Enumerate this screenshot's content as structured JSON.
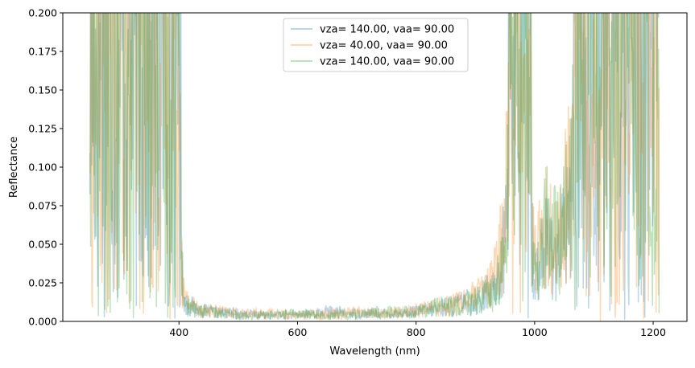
{
  "chart_data": {
    "type": "line",
    "title": "",
    "xlabel": "Wavelength (nm)",
    "ylabel": "Reflectance",
    "xlim": [
      204,
      1257
    ],
    "ylim": [
      0,
      0.2
    ],
    "xticks": [
      400,
      600,
      800,
      1000,
      1200
    ],
    "xtick_labels": [
      "400",
      "600",
      "800",
      "1000",
      "1200"
    ],
    "yticks": [
      0.0,
      0.025,
      0.05,
      0.075,
      0.1,
      0.125,
      0.15,
      0.175,
      0.2
    ],
    "ytick_labels": [
      "0.000",
      "0.025",
      "0.050",
      "0.075",
      "0.100",
      "0.125",
      "0.150",
      "0.175",
      "0.200"
    ],
    "grid": false,
    "legend_position": "upper center",
    "x_range_of_data": [
      250,
      1210
    ],
    "series": [
      {
        "name": "vza= 140.00, vaa= 90.00",
        "color": "#1f77b4",
        "alpha": 0.3,
        "x": [
          250,
          270,
          290,
          310,
          330,
          350,
          370,
          390,
          400,
          410,
          430,
          450,
          500,
          550,
          600,
          650,
          700,
          750,
          800,
          830,
          860,
          900,
          930,
          950,
          960,
          970,
          980,
          990,
          1000,
          1020,
          1040,
          1060,
          1080,
          1100,
          1120,
          1140,
          1160,
          1180,
          1200,
          1210
        ],
        "y": [
          0.2,
          0.15,
          0.2,
          0.12,
          0.2,
          0.1,
          0.2,
          0.14,
          0.05,
          0.012,
          0.008,
          0.006,
          0.005,
          0.004,
          0.004,
          0.006,
          0.005,
          0.005,
          0.006,
          0.008,
          0.01,
          0.014,
          0.02,
          0.05,
          0.2,
          0.15,
          0.2,
          0.09,
          0.03,
          0.05,
          0.04,
          0.07,
          0.2,
          0.12,
          0.2,
          0.09,
          0.2,
          0.11,
          0.2,
          0.13
        ]
      },
      {
        "name": "vza= 40.00, vaa= 90.00",
        "color": "#ff7f0e",
        "alpha": 0.3,
        "x": [
          250,
          270,
          290,
          310,
          330,
          350,
          370,
          390,
          400,
          410,
          430,
          450,
          500,
          550,
          600,
          650,
          700,
          750,
          800,
          830,
          860,
          900,
          930,
          950,
          960,
          970,
          980,
          990,
          1000,
          1020,
          1040,
          1060,
          1080,
          1100,
          1120,
          1140,
          1160,
          1180,
          1200,
          1210
        ],
        "y": [
          0.18,
          0.2,
          0.11,
          0.2,
          0.13,
          0.2,
          0.09,
          0.2,
          0.04,
          0.014,
          0.009,
          0.007,
          0.005,
          0.005,
          0.004,
          0.005,
          0.006,
          0.005,
          0.007,
          0.009,
          0.011,
          0.016,
          0.025,
          0.06,
          0.2,
          0.11,
          0.17,
          0.08,
          0.04,
          0.06,
          0.05,
          0.09,
          0.2,
          0.1,
          0.2,
          0.12,
          0.2,
          0.09,
          0.19,
          0.1
        ]
      },
      {
        "name": "vza= 140.00, vaa= 90.00",
        "color": "#2ca02c",
        "alpha": 0.3,
        "x": [
          250,
          270,
          290,
          310,
          330,
          350,
          370,
          390,
          400,
          410,
          430,
          450,
          500,
          550,
          600,
          650,
          700,
          750,
          800,
          830,
          860,
          900,
          930,
          950,
          960,
          970,
          980,
          990,
          1000,
          1020,
          1040,
          1060,
          1080,
          1100,
          1120,
          1140,
          1160,
          1180,
          1200,
          1210
        ],
        "y": [
          0.2,
          0.13,
          0.2,
          0.16,
          0.2,
          0.12,
          0.2,
          0.1,
          0.06,
          0.011,
          0.007,
          0.006,
          0.004,
          0.004,
          0.005,
          0.004,
          0.005,
          0.006,
          0.006,
          0.01,
          0.009,
          0.013,
          0.018,
          0.04,
          0.16,
          0.2,
          0.12,
          0.07,
          0.03,
          0.06,
          0.05,
          0.08,
          0.2,
          0.14,
          0.18,
          0.2,
          0.1,
          0.2,
          0.12,
          0.15
        ]
      }
    ]
  }
}
